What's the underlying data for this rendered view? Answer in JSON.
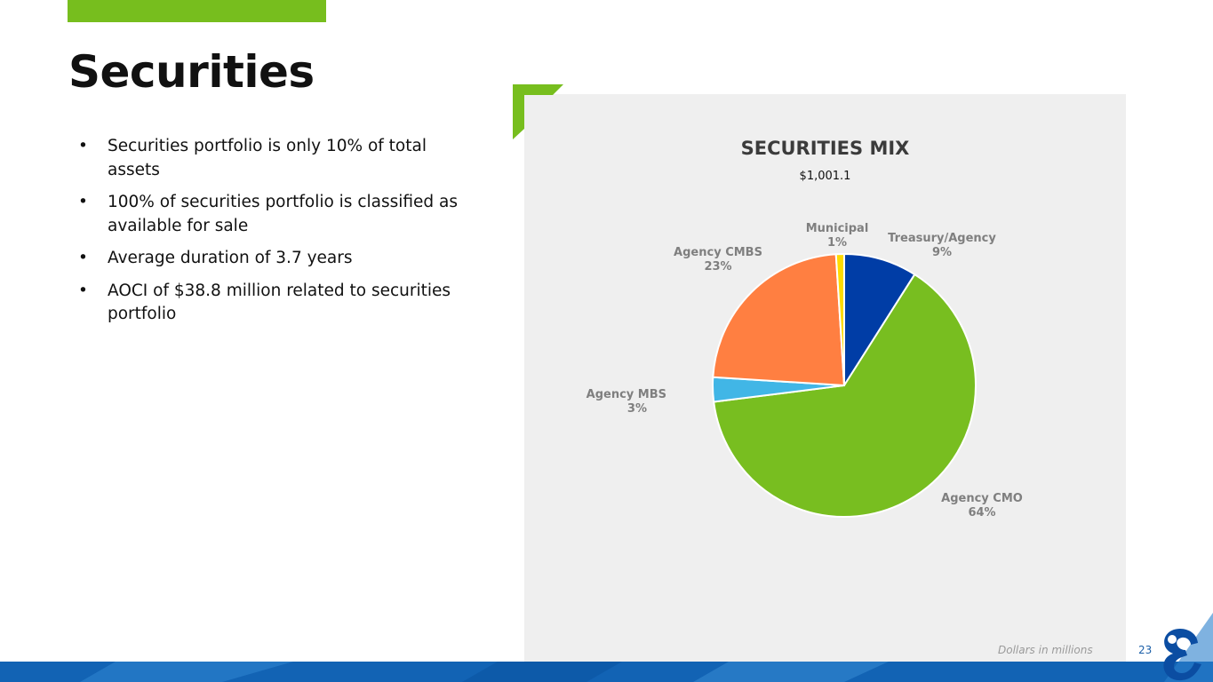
{
  "page": {
    "title": "Securities",
    "bullets": [
      "Securities portfolio is only 10% of total assets",
      "100% of securities portfolio is classified as available for sale",
      "Average duration of 3.7 years",
      "AOCI of $38.8 million related to securities portfolio"
    ],
    "footnote": "Dollars in millions",
    "page_number": "23",
    "bullet_glyph": "•"
  },
  "colors": {
    "accent_green": "#77be1e",
    "brand_blue": "#0b4da2",
    "panel_gray": "#efefef"
  },
  "chart_data": {
    "type": "pie",
    "title": "SECURITIES MIX",
    "subtitle": "$1,001.1",
    "slices": [
      {
        "label": "Treasury/Agency",
        "value": 9,
        "display": "9%",
        "color": "#003da6"
      },
      {
        "label": "Agency CMO",
        "value": 64,
        "display": "64%",
        "color": "#78be20"
      },
      {
        "label": "Agency MBS",
        "value": 3,
        "display": "3%",
        "color": "#41b6e6"
      },
      {
        "label": "Agency CMBS",
        "value": 23,
        "display": "23%",
        "color": "#ff7f41"
      },
      {
        "label": "Municipal",
        "value": 1,
        "display": "1%",
        "color": "#fedb00"
      }
    ]
  }
}
